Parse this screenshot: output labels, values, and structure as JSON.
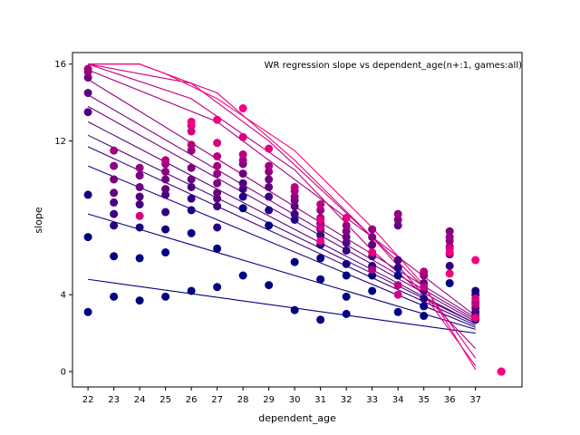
{
  "chart_data": {
    "type": "scatter",
    "title": "WR regression slope vs dependent_age(n+:1, games:all)",
    "xlabel": "dependent_age",
    "ylabel": "slope",
    "x_ticks": [
      "22",
      "23",
      "24",
      "25",
      "26",
      "27",
      "28",
      "29",
      "30",
      "31",
      "32",
      "33",
      "34",
      "35",
      "36",
      "37"
    ],
    "y_ticks": [
      0,
      4,
      12,
      16
    ],
    "xlim": [
      21.4,
      38.8
    ],
    "ylim": [
      -0.8,
      16.6
    ],
    "grid": false,
    "legend": "none",
    "color_scale": {
      "low": "#000080",
      "mid": "#800080",
      "high": "#ff0080"
    },
    "points": [
      {
        "x": 22,
        "y": 3.1,
        "c": 0.0
      },
      {
        "x": 22,
        "y": 7.0,
        "c": 0.0
      },
      {
        "x": 22,
        "y": 9.2,
        "c": 0.08
      },
      {
        "x": 22,
        "y": 13.5,
        "c": 0.3
      },
      {
        "x": 22,
        "y": 14.5,
        "c": 0.38
      },
      {
        "x": 22,
        "y": 15.3,
        "c": 0.46
      },
      {
        "x": 22,
        "y": 15.6,
        "c": 0.55
      },
      {
        "x": 22,
        "y": 15.75,
        "c": 0.62
      },
      {
        "x": 23,
        "y": 3.9,
        "c": 0.0
      },
      {
        "x": 23,
        "y": 6.0,
        "c": 0.0
      },
      {
        "x": 23,
        "y": 7.6,
        "c": 0.15
      },
      {
        "x": 23,
        "y": 8.2,
        "c": 0.23
      },
      {
        "x": 23,
        "y": 8.8,
        "c": 0.31
      },
      {
        "x": 23,
        "y": 9.3,
        "c": 0.38
      },
      {
        "x": 23,
        "y": 10.0,
        "c": 0.46
      },
      {
        "x": 23,
        "y": 10.7,
        "c": 0.54
      },
      {
        "x": 23,
        "y": 11.5,
        "c": 0.62
      },
      {
        "x": 24,
        "y": 3.7,
        "c": 0.0
      },
      {
        "x": 24,
        "y": 5.9,
        "c": 0.0
      },
      {
        "x": 24,
        "y": 7.5,
        "c": 0.1
      },
      {
        "x": 24,
        "y": 8.1,
        "c": 0.85
      },
      {
        "x": 24,
        "y": 8.7,
        "c": 0.25
      },
      {
        "x": 24,
        "y": 9.1,
        "c": 0.33
      },
      {
        "x": 24,
        "y": 9.6,
        "c": 0.42
      },
      {
        "x": 24,
        "y": 10.2,
        "c": 0.5
      },
      {
        "x": 24,
        "y": 10.6,
        "c": 0.58
      },
      {
        "x": 25,
        "y": 3.9,
        "c": 0.0
      },
      {
        "x": 25,
        "y": 6.2,
        "c": 0.0
      },
      {
        "x": 25,
        "y": 7.4,
        "c": 0.1
      },
      {
        "x": 25,
        "y": 8.3,
        "c": 0.2
      },
      {
        "x": 25,
        "y": 9.2,
        "c": 0.3
      },
      {
        "x": 25,
        "y": 9.5,
        "c": 0.38
      },
      {
        "x": 25,
        "y": 10.0,
        "c": 0.46
      },
      {
        "x": 25,
        "y": 10.4,
        "c": 0.54
      },
      {
        "x": 25,
        "y": 10.8,
        "c": 0.62
      },
      {
        "x": 25,
        "y": 11.0,
        "c": 0.7
      },
      {
        "x": 26,
        "y": 4.2,
        "c": 0.0
      },
      {
        "x": 26,
        "y": 7.2,
        "c": 0.0
      },
      {
        "x": 26,
        "y": 8.4,
        "c": 0.1
      },
      {
        "x": 26,
        "y": 9.0,
        "c": 0.2
      },
      {
        "x": 26,
        "y": 9.6,
        "c": 0.3
      },
      {
        "x": 26,
        "y": 10.0,
        "c": 0.4
      },
      {
        "x": 26,
        "y": 10.6,
        "c": 0.5
      },
      {
        "x": 26,
        "y": 11.5,
        "c": 0.6
      },
      {
        "x": 26,
        "y": 11.8,
        "c": 0.7
      },
      {
        "x": 26,
        "y": 12.5,
        "c": 0.8
      },
      {
        "x": 26,
        "y": 12.8,
        "c": 0.88
      },
      {
        "x": 26,
        "y": 13.0,
        "c": 0.95
      },
      {
        "x": 27,
        "y": 4.4,
        "c": 0.0
      },
      {
        "x": 27,
        "y": 6.4,
        "c": 0.0
      },
      {
        "x": 27,
        "y": 7.5,
        "c": 0.15
      },
      {
        "x": 27,
        "y": 8.6,
        "c": 0.25
      },
      {
        "x": 27,
        "y": 9.0,
        "c": 0.35
      },
      {
        "x": 27,
        "y": 9.3,
        "c": 0.42
      },
      {
        "x": 27,
        "y": 9.8,
        "c": 0.5
      },
      {
        "x": 27,
        "y": 10.3,
        "c": 0.58
      },
      {
        "x": 27,
        "y": 10.7,
        "c": 0.66
      },
      {
        "x": 27,
        "y": 11.2,
        "c": 0.74
      },
      {
        "x": 27,
        "y": 11.9,
        "c": 0.85
      },
      {
        "x": 27,
        "y": 13.1,
        "c": 0.95
      },
      {
        "x": 28,
        "y": 5.0,
        "c": 0.0
      },
      {
        "x": 28,
        "y": 8.5,
        "c": 0.0
      },
      {
        "x": 28,
        "y": 9.1,
        "c": 0.12
      },
      {
        "x": 28,
        "y": 9.5,
        "c": 0.22
      },
      {
        "x": 28,
        "y": 9.8,
        "c": 0.32
      },
      {
        "x": 28,
        "y": 10.3,
        "c": 0.42
      },
      {
        "x": 28,
        "y": 10.8,
        "c": 0.52
      },
      {
        "x": 28,
        "y": 11.0,
        "c": 0.62
      },
      {
        "x": 28,
        "y": 11.3,
        "c": 0.72
      },
      {
        "x": 28,
        "y": 12.2,
        "c": 0.85
      },
      {
        "x": 28,
        "y": 13.7,
        "c": 0.95
      },
      {
        "x": 29,
        "y": 4.5,
        "c": 0.0
      },
      {
        "x": 29,
        "y": 7.6,
        "c": 0.0
      },
      {
        "x": 29,
        "y": 8.4,
        "c": 0.12
      },
      {
        "x": 29,
        "y": 9.1,
        "c": 0.25
      },
      {
        "x": 29,
        "y": 9.6,
        "c": 0.35
      },
      {
        "x": 29,
        "y": 10.0,
        "c": 0.45
      },
      {
        "x": 29,
        "y": 10.4,
        "c": 0.55
      },
      {
        "x": 29,
        "y": 10.7,
        "c": 0.65
      },
      {
        "x": 29,
        "y": 11.6,
        "c": 0.9
      },
      {
        "x": 30,
        "y": 3.2,
        "c": 0.0
      },
      {
        "x": 30,
        "y": 5.7,
        "c": 0.0
      },
      {
        "x": 30,
        "y": 7.9,
        "c": 0.15
      },
      {
        "x": 30,
        "y": 8.2,
        "c": 0.25
      },
      {
        "x": 30,
        "y": 8.6,
        "c": 0.35
      },
      {
        "x": 30,
        "y": 8.9,
        "c": 0.45
      },
      {
        "x": 30,
        "y": 9.1,
        "c": 0.55
      },
      {
        "x": 30,
        "y": 9.4,
        "c": 0.65
      },
      {
        "x": 30,
        "y": 9.6,
        "c": 0.75
      },
      {
        "x": 31,
        "y": 2.7,
        "c": 0.0
      },
      {
        "x": 31,
        "y": 4.8,
        "c": 0.0
      },
      {
        "x": 31,
        "y": 5.9,
        "c": 0.0
      },
      {
        "x": 31,
        "y": 6.6,
        "c": 0.12
      },
      {
        "x": 31,
        "y": 7.1,
        "c": 0.22
      },
      {
        "x": 31,
        "y": 7.4,
        "c": 0.32
      },
      {
        "x": 31,
        "y": 7.7,
        "c": 0.42
      },
      {
        "x": 31,
        "y": 8.0,
        "c": 0.52
      },
      {
        "x": 31,
        "y": 8.4,
        "c": 0.62
      },
      {
        "x": 31,
        "y": 8.7,
        "c": 0.72
      },
      {
        "x": 31,
        "y": 7.5,
        "c": 0.8
      },
      {
        "x": 31,
        "y": 7.9,
        "c": 0.88
      },
      {
        "x": 31,
        "y": 6.8,
        "c": 0.95
      },
      {
        "x": 32,
        "y": 3.0,
        "c": 0.0
      },
      {
        "x": 32,
        "y": 3.9,
        "c": 0.0
      },
      {
        "x": 32,
        "y": 5.0,
        "c": 0.0
      },
      {
        "x": 32,
        "y": 5.6,
        "c": 0.1
      },
      {
        "x": 32,
        "y": 6.3,
        "c": 0.2
      },
      {
        "x": 32,
        "y": 6.7,
        "c": 0.3
      },
      {
        "x": 32,
        "y": 7.0,
        "c": 0.4
      },
      {
        "x": 32,
        "y": 7.3,
        "c": 0.5
      },
      {
        "x": 32,
        "y": 7.6,
        "c": 0.6
      },
      {
        "x": 32,
        "y": 8.0,
        "c": 0.9
      },
      {
        "x": 33,
        "y": 4.2,
        "c": 0.0
      },
      {
        "x": 33,
        "y": 5.0,
        "c": 0.0
      },
      {
        "x": 33,
        "y": 5.5,
        "c": 0.15
      },
      {
        "x": 33,
        "y": 6.0,
        "c": 0.3
      },
      {
        "x": 33,
        "y": 6.6,
        "c": 0.4
      },
      {
        "x": 33,
        "y": 7.0,
        "c": 0.5
      },
      {
        "x": 33,
        "y": 7.4,
        "c": 0.6
      },
      {
        "x": 33,
        "y": 5.3,
        "c": 0.7
      },
      {
        "x": 33,
        "y": 6.2,
        "c": 0.9
      },
      {
        "x": 34,
        "y": 3.1,
        "c": 0.0
      },
      {
        "x": 34,
        "y": 5.0,
        "c": 0.0
      },
      {
        "x": 34,
        "y": 5.4,
        "c": 0.15
      },
      {
        "x": 34,
        "y": 5.8,
        "c": 0.3
      },
      {
        "x": 34,
        "y": 7.6,
        "c": 0.4
      },
      {
        "x": 34,
        "y": 7.9,
        "c": 0.5
      },
      {
        "x": 34,
        "y": 8.2,
        "c": 0.6
      },
      {
        "x": 34,
        "y": 4.0,
        "c": 0.85
      },
      {
        "x": 34,
        "y": 4.5,
        "c": 0.75
      },
      {
        "x": 35,
        "y": 2.9,
        "c": 0.0
      },
      {
        "x": 35,
        "y": 3.4,
        "c": 0.0
      },
      {
        "x": 35,
        "y": 3.8,
        "c": 0.15
      },
      {
        "x": 35,
        "y": 4.2,
        "c": 0.3
      },
      {
        "x": 35,
        "y": 4.6,
        "c": 0.4
      },
      {
        "x": 35,
        "y": 5.0,
        "c": 0.55
      },
      {
        "x": 35,
        "y": 5.2,
        "c": 0.7
      },
      {
        "x": 35,
        "y": 4.4,
        "c": 0.8
      },
      {
        "x": 36,
        "y": 4.6,
        "c": 0.0
      },
      {
        "x": 36,
        "y": 5.5,
        "c": 0.2
      },
      {
        "x": 36,
        "y": 6.1,
        "c": 0.35
      },
      {
        "x": 36,
        "y": 6.5,
        "c": 0.45
      },
      {
        "x": 36,
        "y": 6.8,
        "c": 0.55
      },
      {
        "x": 36,
        "y": 7.0,
        "c": 0.62
      },
      {
        "x": 36,
        "y": 7.3,
        "c": 0.5
      },
      {
        "x": 36,
        "y": 6.4,
        "c": 0.85
      },
      {
        "x": 36,
        "y": 5.1,
        "c": 0.95
      },
      {
        "x": 36,
        "y": 6.2,
        "c": 0.95
      },
      {
        "x": 37,
        "y": 2.7,
        "c": 0.0
      },
      {
        "x": 37,
        "y": 2.9,
        "c": 0.15
      },
      {
        "x": 37,
        "y": 3.1,
        "c": 0.25
      },
      {
        "x": 37,
        "y": 3.3,
        "c": 0.35
      },
      {
        "x": 37,
        "y": 3.6,
        "c": 0.45
      },
      {
        "x": 37,
        "y": 4.0,
        "c": 0.2
      },
      {
        "x": 37,
        "y": 4.2,
        "c": 0.1
      },
      {
        "x": 37,
        "y": 3.8,
        "c": 0.85
      },
      {
        "x": 37,
        "y": 3.5,
        "c": 0.75
      },
      {
        "x": 37,
        "y": 2.8,
        "c": 0.95
      },
      {
        "x": 37,
        "y": 5.8,
        "c": 0.95
      },
      {
        "x": 38.0,
        "y": 0,
        "c": 0.9
      },
      {
        "x": 38.0,
        "y": 0,
        "c": 0.95
      },
      {
        "x": 38.0,
        "y": 0,
        "c": 1.0
      }
    ],
    "series": [
      {
        "c": 0.0,
        "x": [
          22,
          37
        ],
        "y": [
          4.8,
          2.0
        ]
      },
      {
        "c": 0.07,
        "x": [
          22,
          37
        ],
        "y": [
          8.2,
          2.2
        ]
      },
      {
        "c": 0.14,
        "x": [
          22,
          37
        ],
        "y": [
          10.7,
          2.3
        ]
      },
      {
        "c": 0.21,
        "x": [
          22,
          37
        ],
        "y": [
          11.7,
          2.4
        ]
      },
      {
        "c": 0.28,
        "x": [
          22,
          37
        ],
        "y": [
          12.3,
          2.5
        ]
      },
      {
        "c": 0.35,
        "x": [
          22,
          37
        ],
        "y": [
          13.0,
          2.5
        ]
      },
      {
        "c": 0.42,
        "x": [
          22,
          37
        ],
        "y": [
          13.8,
          2.6
        ]
      },
      {
        "c": 0.5,
        "x": [
          22,
          37
        ],
        "y": [
          14.4,
          2.7
        ]
      },
      {
        "c": 0.57,
        "x": [
          22,
          37
        ],
        "y": [
          15.2,
          2.8
        ]
      },
      {
        "c": 0.64,
        "x": [
          22,
          27,
          33,
          37
        ],
        "y": [
          15.7,
          13.0,
          7.0,
          2.9
        ]
      },
      {
        "c": 0.72,
        "x": [
          22,
          26,
          30,
          33,
          35,
          37
        ],
        "y": [
          16.0,
          14.2,
          10.5,
          6.3,
          4.0,
          1.2
        ]
      },
      {
        "c": 0.8,
        "x": [
          22,
          26,
          29,
          33,
          35,
          37
        ],
        "y": [
          16.0,
          15.0,
          12.0,
          7.0,
          4.4,
          0.7
        ]
      },
      {
        "c": 0.9,
        "x": [
          22,
          24,
          27,
          30,
          33,
          35,
          37
        ],
        "y": [
          16.0,
          16.0,
          14.5,
          11.0,
          7.0,
          4.0,
          0.3
        ]
      },
      {
        "c": 1.0,
        "x": [
          22,
          24,
          25,
          27,
          30,
          33,
          35,
          37
        ],
        "y": [
          16.0,
          16.0,
          15.5,
          14.2,
          11.5,
          7.5,
          4.5,
          0.1
        ]
      }
    ]
  }
}
